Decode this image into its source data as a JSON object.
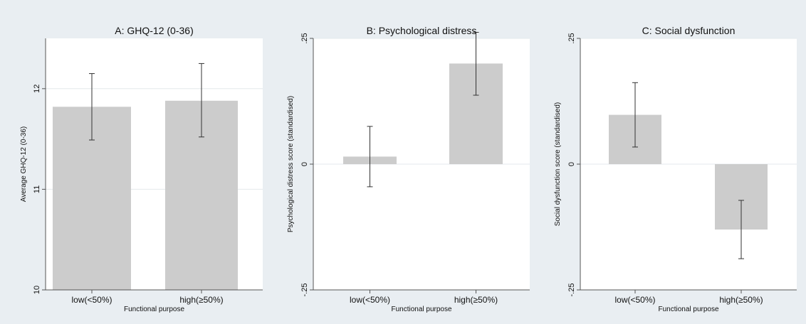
{
  "chart_data": [
    {
      "type": "bar",
      "title": "A: GHQ-12 (0-36)",
      "xlabel": "Functional purpose",
      "ylabel": "Average GHQ-12 (0-36)",
      "categories": [
        "low(<50%)",
        "high(≥50%)"
      ],
      "values": [
        11.82,
        11.88
      ],
      "error_low": [
        11.49,
        11.52
      ],
      "error_high": [
        12.15,
        12.25
      ],
      "ylim": [
        10,
        12.5
      ],
      "bar_base": 10,
      "yticks": [
        10,
        11,
        12
      ],
      "ytick_labels": [
        "10",
        "11",
        "12"
      ],
      "grid": true
    },
    {
      "type": "bar",
      "title": "B: Psychological distress",
      "xlabel": "Functional purpose",
      "ylabel": "Psychological distress score (standardised)",
      "categories": [
        "low(<50%)",
        "high(≥50%)"
      ],
      "values": [
        0.015,
        0.2
      ],
      "error_low": [
        -0.045,
        0.137
      ],
      "error_high": [
        0.075,
        0.262
      ],
      "ylim": [
        -0.25,
        0.25
      ],
      "bar_base": 0,
      "yticks": [
        -0.25,
        0,
        0.25
      ],
      "ytick_labels": [
        "-.25",
        "0",
        ".25"
      ],
      "grid": true
    },
    {
      "type": "bar",
      "title": "C: Social dysfunction",
      "xlabel": "Functional purpose",
      "ylabel": "Social dysfunction score (standardised)",
      "categories": [
        "low(<50%)",
        "high(≥50%)"
      ],
      "values": [
        0.098,
        -0.13
      ],
      "error_low": [
        0.034,
        -0.188
      ],
      "error_high": [
        0.162,
        -0.072
      ],
      "ylim": [
        -0.25,
        0.25
      ],
      "bar_base": 0,
      "yticks": [
        -0.25,
        0,
        0.25
      ],
      "ytick_labels": [
        "-.25",
        "0",
        ".25"
      ],
      "grid": true
    }
  ],
  "colors": {
    "outer_background": "#e9eef2",
    "plot_background": "#ffffff",
    "bar_fill": "#cccccc",
    "error_bar": "#333333",
    "grid": "#e4e9ec",
    "axis": "#555555",
    "text": "#111111"
  }
}
